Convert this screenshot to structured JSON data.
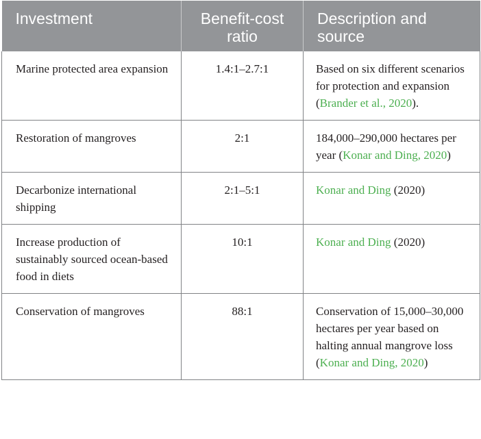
{
  "table": {
    "headers": [
      "Investment",
      "Benefit-cost ratio",
      "Description and source"
    ],
    "rows": [
      {
        "investment": "Marine protected area expansion",
        "ratio": "1.4:1–2.7:1",
        "desc_text": "Based on six different scenarios for protection and expansion (",
        "desc_cite": "Brander et al., 2020",
        "desc_after": ")."
      },
      {
        "investment": "Restoration of mangroves",
        "ratio": "2:1",
        "desc_text": "184,000–290,000 hectares per year (",
        "desc_cite": "Konar and Ding, 2020",
        "desc_after": ")"
      },
      {
        "investment": "Decarbonize international shipping",
        "ratio": "2:1–5:1",
        "desc_text": "",
        "desc_cite": "Konar and Ding",
        "desc_after": " (2020)"
      },
      {
        "investment": "Increase production of sustainably sourced ocean-based food in diets",
        "ratio": "10:1",
        "desc_text": "",
        "desc_cite": "Konar and Ding",
        "desc_after": " (2020)"
      },
      {
        "investment": "Conservation of mangroves",
        "ratio": "88:1",
        "desc_text": "Conservation of 15,000–30,000 hectares per year based on halting annual mangrove loss (",
        "desc_cite": "Konar and Ding, 2020",
        "desc_after": ")"
      }
    ]
  },
  "colors": {
    "header_bg": "#939598",
    "citation": "#4caf50",
    "border": "#808285"
  }
}
